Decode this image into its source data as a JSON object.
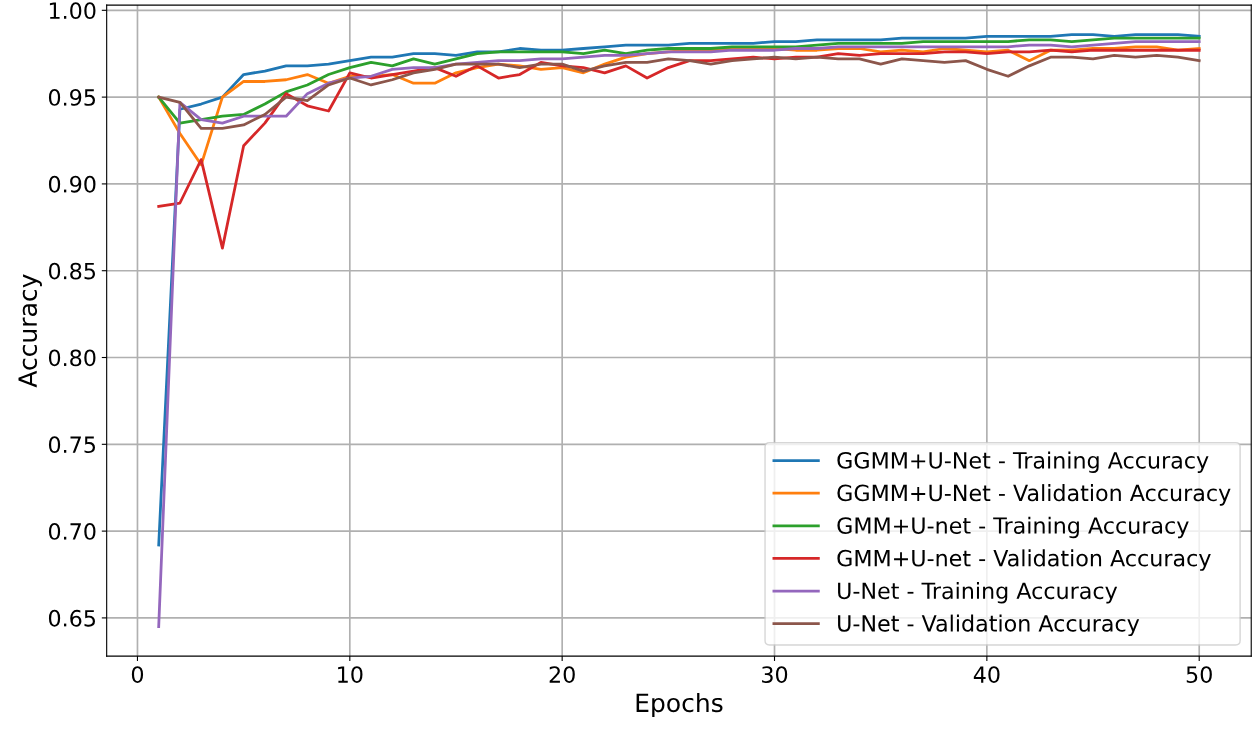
{
  "chart_data": {
    "type": "line",
    "xlabel": "Epochs",
    "ylabel": "Accuracy",
    "x": [
      1,
      2,
      3,
      4,
      5,
      6,
      7,
      8,
      9,
      10,
      11,
      12,
      13,
      14,
      15,
      16,
      17,
      18,
      19,
      20,
      21,
      22,
      23,
      24,
      25,
      26,
      27,
      28,
      29,
      30,
      31,
      32,
      33,
      34,
      35,
      36,
      37,
      38,
      39,
      40,
      41,
      42,
      43,
      44,
      45,
      46,
      47,
      48,
      49,
      50
    ],
    "xlim": [
      -1.45,
      52.45
    ],
    "xticks": [
      0,
      10,
      20,
      30,
      40,
      50
    ],
    "ylim": [
      0.628,
      1.003
    ],
    "yticks": [
      {
        "value": 0.65,
        "label": "0.65"
      },
      {
        "value": 0.7,
        "label": "0.70"
      },
      {
        "value": 0.75,
        "label": "0.75"
      },
      {
        "value": 0.8,
        "label": "0.80"
      },
      {
        "value": 0.85,
        "label": "0.85"
      },
      {
        "value": 0.9,
        "label": "0.90"
      },
      {
        "value": 0.95,
        "label": "0.95"
      },
      {
        "value": 1.0,
        "label": "1.00"
      }
    ],
    "grid": true,
    "legend": "bottom right",
    "series": [
      {
        "name": "GGMM+U-Net - Training Accuracy",
        "color": "#1f77b4",
        "values": [
          0.692,
          0.943,
          0.946,
          0.95,
          0.963,
          0.965,
          0.968,
          0.968,
          0.969,
          0.971,
          0.973,
          0.973,
          0.975,
          0.975,
          0.974,
          0.976,
          0.976,
          0.978,
          0.977,
          0.977,
          0.978,
          0.979,
          0.98,
          0.98,
          0.98,
          0.981,
          0.981,
          0.981,
          0.981,
          0.982,
          0.982,
          0.983,
          0.983,
          0.983,
          0.983,
          0.984,
          0.984,
          0.984,
          0.984,
          0.985,
          0.985,
          0.985,
          0.985,
          0.986,
          0.986,
          0.985,
          0.986,
          0.986,
          0.986,
          0.985
        ]
      },
      {
        "name": "GGMM+U-Net - Validation Accuracy",
        "color": "#ff7f0e",
        "values": [
          0.95,
          0.929,
          0.911,
          0.95,
          0.959,
          0.959,
          0.96,
          0.963,
          0.958,
          0.962,
          0.962,
          0.963,
          0.958,
          0.958,
          0.964,
          0.967,
          0.969,
          0.968,
          0.966,
          0.967,
          0.964,
          0.969,
          0.973,
          0.975,
          0.976,
          0.977,
          0.977,
          0.978,
          0.978,
          0.978,
          0.977,
          0.977,
          0.978,
          0.978,
          0.976,
          0.977,
          0.976,
          0.978,
          0.977,
          0.976,
          0.977,
          0.971,
          0.977,
          0.977,
          0.978,
          0.978,
          0.979,
          0.979,
          0.977,
          0.978
        ]
      },
      {
        "name": "GMM+U-net - Training Accuracy",
        "color": "#2ca02c",
        "values": [
          0.95,
          0.935,
          0.937,
          0.939,
          0.94,
          0.946,
          0.953,
          0.957,
          0.963,
          0.967,
          0.97,
          0.968,
          0.972,
          0.969,
          0.972,
          0.975,
          0.976,
          0.976,
          0.976,
          0.976,
          0.975,
          0.977,
          0.975,
          0.977,
          0.978,
          0.978,
          0.978,
          0.979,
          0.979,
          0.979,
          0.979,
          0.98,
          0.981,
          0.981,
          0.981,
          0.981,
          0.982,
          0.982,
          0.982,
          0.982,
          0.982,
          0.983,
          0.983,
          0.982,
          0.983,
          0.984,
          0.984,
          0.984,
          0.984,
          0.984
        ]
      },
      {
        "name": "GMM+U-net - Validation Accuracy",
        "color": "#d62728",
        "values": [
          0.887,
          0.889,
          0.914,
          0.863,
          0.922,
          0.935,
          0.952,
          0.945,
          0.942,
          0.964,
          0.961,
          0.963,
          0.965,
          0.967,
          0.962,
          0.968,
          0.961,
          0.963,
          0.97,
          0.968,
          0.967,
          0.964,
          0.968,
          0.961,
          0.967,
          0.971,
          0.971,
          0.972,
          0.973,
          0.972,
          0.973,
          0.973,
          0.975,
          0.974,
          0.975,
          0.975,
          0.975,
          0.976,
          0.976,
          0.975,
          0.976,
          0.976,
          0.977,
          0.976,
          0.977,
          0.977,
          0.977,
          0.977,
          0.977,
          0.977
        ]
      },
      {
        "name": "U-Net - Training Accuracy",
        "color": "#9467bd",
        "values": [
          0.645,
          0.947,
          0.937,
          0.935,
          0.939,
          0.939,
          0.939,
          0.952,
          0.958,
          0.961,
          0.962,
          0.966,
          0.967,
          0.967,
          0.969,
          0.97,
          0.971,
          0.971,
          0.972,
          0.972,
          0.973,
          0.974,
          0.974,
          0.975,
          0.976,
          0.976,
          0.976,
          0.977,
          0.977,
          0.977,
          0.978,
          0.978,
          0.979,
          0.979,
          0.979,
          0.979,
          0.979,
          0.979,
          0.979,
          0.979,
          0.979,
          0.98,
          0.98,
          0.979,
          0.98,
          0.981,
          0.982,
          0.982,
          0.982,
          0.982
        ]
      },
      {
        "name": "U-Net - Validation Accuracy",
        "color": "#8c564b",
        "values": [
          0.95,
          0.947,
          0.932,
          0.932,
          0.934,
          0.94,
          0.95,
          0.948,
          0.957,
          0.961,
          0.957,
          0.96,
          0.964,
          0.966,
          0.969,
          0.969,
          0.969,
          0.967,
          0.969,
          0.969,
          0.965,
          0.968,
          0.97,
          0.97,
          0.972,
          0.971,
          0.969,
          0.971,
          0.972,
          0.973,
          0.972,
          0.973,
          0.972,
          0.972,
          0.969,
          0.972,
          0.971,
          0.97,
          0.971,
          0.966,
          0.962,
          0.968,
          0.973,
          0.973,
          0.972,
          0.974,
          0.973,
          0.974,
          0.973,
          0.971
        ]
      }
    ]
  }
}
